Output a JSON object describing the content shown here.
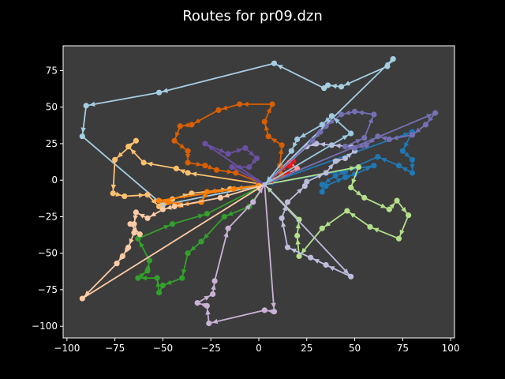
{
  "chart_data": {
    "type": "line",
    "title": "Routes for pr09.dzn",
    "xlabel": "",
    "ylabel": "",
    "xlim": [
      -102,
      102
    ],
    "ylim": [
      -108,
      92
    ],
    "xticks": [
      -100,
      -75,
      -50,
      -25,
      0,
      25,
      50,
      75,
      100
    ],
    "yticks": [
      -100,
      -75,
      -50,
      -25,
      0,
      25,
      50,
      75
    ],
    "grid": false,
    "legend": "none",
    "colors": {
      "figure_background": "#000000",
      "axes_background": "#3c3c3c",
      "axes_frame": "#ffffff",
      "text": "#ffffff"
    },
    "depot": [
      3,
      -3
    ],
    "series": [
      {
        "color": "#a6cee3",
        "points": [
          [
            3,
            -3
          ],
          [
            70,
            83
          ],
          [
            67,
            78
          ],
          [
            43,
            64
          ],
          [
            36,
            65
          ],
          [
            34,
            63
          ],
          [
            8,
            80
          ],
          [
            -52,
            60
          ],
          [
            -90,
            51
          ],
          [
            -92,
            30
          ],
          [
            -50,
            -17
          ],
          [
            3,
            -3
          ]
        ]
      },
      {
        "color": "#1f78b4",
        "points": [
          [
            3,
            -3
          ],
          [
            80,
            33
          ],
          [
            75,
            20
          ],
          [
            80,
            14
          ],
          [
            80,
            5
          ],
          [
            73,
            10
          ],
          [
            62,
            16
          ],
          [
            45,
            6
          ],
          [
            40,
            3
          ],
          [
            33,
            -3
          ],
          [
            33,
            -8
          ],
          [
            35,
            -4
          ],
          [
            45,
            2
          ],
          [
            50,
            4
          ],
          [
            60,
            10
          ],
          [
            3,
            -3
          ]
        ]
      },
      {
        "color": "#b2df8a",
        "points": [
          [
            3,
            -3
          ],
          [
            52,
            9
          ],
          [
            48,
            -5
          ],
          [
            55,
            -12
          ],
          [
            68,
            -20
          ],
          [
            72,
            -14
          ],
          [
            78,
            -24
          ],
          [
            73,
            -40
          ],
          [
            58,
            -32
          ],
          [
            46,
            -21
          ],
          [
            33,
            -33
          ],
          [
            21,
            -52
          ],
          [
            20,
            -38
          ],
          [
            21,
            -27
          ],
          [
            3,
            -3
          ]
        ]
      },
      {
        "color": "#33a02c",
        "points": [
          [
            3,
            -3
          ],
          [
            -5,
            -18
          ],
          [
            -18,
            -25
          ],
          [
            -30,
            -42
          ],
          [
            -37,
            -50
          ],
          [
            -40,
            -67
          ],
          [
            -50,
            -72
          ],
          [
            -52,
            -77
          ],
          [
            -53,
            -67
          ],
          [
            -63,
            -67
          ],
          [
            -58,
            -62
          ],
          [
            -57,
            -55
          ],
          [
            -63,
            -40
          ],
          [
            -45,
            -30
          ],
          [
            -27,
            -23
          ],
          [
            3,
            -3
          ]
        ]
      },
      {
        "color": "#fb9a99",
        "points": [
          [
            3,
            -3
          ],
          [
            16,
            12
          ],
          [
            20,
            8
          ],
          [
            3,
            -3
          ]
        ]
      },
      {
        "color": "#e31a1c",
        "points": [
          [
            3,
            -3
          ],
          [
            18,
            13
          ],
          [
            15,
            5
          ],
          [
            3,
            -3
          ]
        ]
      },
      {
        "color": "#fdbf6f",
        "points": [
          [
            3,
            -3
          ],
          [
            -37,
            5
          ],
          [
            -43,
            8
          ],
          [
            -60,
            12
          ],
          [
            -68,
            23
          ],
          [
            -64,
            27
          ],
          [
            -75,
            14
          ],
          [
            -76,
            -9
          ],
          [
            -70,
            -11
          ],
          [
            -58,
            -10
          ],
          [
            -52,
            -18
          ],
          [
            -45,
            -13
          ],
          [
            -35,
            -9
          ],
          [
            -15,
            -6
          ],
          [
            3,
            -3
          ]
        ]
      },
      {
        "color": "#ff7f00",
        "points": [
          [
            3,
            -3
          ],
          [
            -13,
            -6
          ],
          [
            -27,
            -8
          ],
          [
            -30,
            -15
          ],
          [
            -41,
            -17
          ],
          [
            -47,
            -15
          ],
          [
            -52,
            -14
          ],
          [
            3,
            -3
          ]
        ]
      },
      {
        "color": "#fdcba5",
        "points": [
          [
            3,
            -3
          ],
          [
            -20,
            -12
          ],
          [
            -44,
            -18
          ],
          [
            -50,
            -20
          ],
          [
            -58,
            -26
          ],
          [
            -64,
            -22
          ],
          [
            -65,
            -30
          ],
          [
            -67,
            -30
          ],
          [
            -62,
            -37
          ],
          [
            -65,
            -36
          ],
          [
            -68,
            -46
          ],
          [
            -71,
            -52
          ],
          [
            -74,
            -57
          ],
          [
            -92,
            -81
          ],
          [
            3,
            -3
          ]
        ]
      },
      {
        "color": "#d95f02",
        "points": [
          [
            3,
            -3
          ],
          [
            12,
            3
          ],
          [
            11,
            10
          ],
          [
            12,
            24
          ],
          [
            5,
            30
          ],
          [
            3,
            40
          ],
          [
            7,
            52
          ],
          [
            -10,
            52
          ],
          [
            -21,
            48
          ],
          [
            -35,
            38
          ],
          [
            -41,
            37
          ],
          [
            -44,
            27
          ],
          [
            -37,
            20
          ],
          [
            -37,
            12
          ],
          [
            -28,
            10
          ],
          [
            -22,
            7
          ],
          [
            -12,
            5
          ],
          [
            3,
            -3
          ]
        ]
      },
      {
        "color": "#bcbddc",
        "points": [
          [
            3,
            -3
          ],
          [
            48,
            -66
          ],
          [
            35,
            -58
          ],
          [
            27,
            -53
          ],
          [
            15,
            -46
          ],
          [
            12,
            -26
          ],
          [
            15,
            -15
          ],
          [
            24,
            -4
          ],
          [
            25,
            -1
          ],
          [
            35,
            5
          ],
          [
            40,
            13
          ],
          [
            45,
            15
          ],
          [
            50,
            20
          ],
          [
            48,
            23
          ],
          [
            38,
            24
          ],
          [
            30,
            25
          ],
          [
            25,
            23
          ],
          [
            3,
            -3
          ]
        ]
      },
      {
        "color": "#7570b3",
        "points": [
          [
            3,
            -3
          ],
          [
            92,
            46
          ],
          [
            87,
            38
          ],
          [
            80,
            31
          ],
          [
            68,
            28
          ],
          [
            62,
            30
          ],
          [
            56,
            24
          ],
          [
            50,
            22
          ],
          [
            45,
            23
          ],
          [
            55,
            29
          ],
          [
            60,
            45
          ],
          [
            50,
            47
          ],
          [
            43,
            45
          ],
          [
            35,
            37
          ],
          [
            32,
            33
          ],
          [
            28,
            27
          ],
          [
            3,
            -3
          ]
        ]
      },
      {
        "color": "#6a51a3",
        "points": [
          [
            3,
            -3
          ],
          [
            -28,
            25
          ],
          [
            -16,
            18
          ],
          [
            -7,
            22
          ],
          [
            -1,
            15
          ],
          [
            -5,
            9
          ],
          [
            -14,
            9
          ],
          [
            3,
            -3
          ]
        ]
      },
      {
        "color": "#cab2d6",
        "points": [
          [
            3,
            -3
          ],
          [
            8,
            -90
          ],
          [
            3,
            -89
          ],
          [
            -26,
            -98
          ],
          [
            -27,
            -86
          ],
          [
            -32,
            -84
          ],
          [
            -24,
            -78
          ],
          [
            -23,
            -69
          ],
          [
            -16,
            -33
          ],
          [
            -3,
            -15
          ],
          [
            3,
            -3
          ]
        ]
      },
      {
        "color": "#9ecae1",
        "points": [
          [
            3,
            -3
          ],
          [
            48,
            32
          ],
          [
            38,
            44
          ],
          [
            33,
            38
          ],
          [
            20,
            28
          ],
          [
            17,
            20
          ],
          [
            3,
            -3
          ]
        ]
      }
    ]
  }
}
